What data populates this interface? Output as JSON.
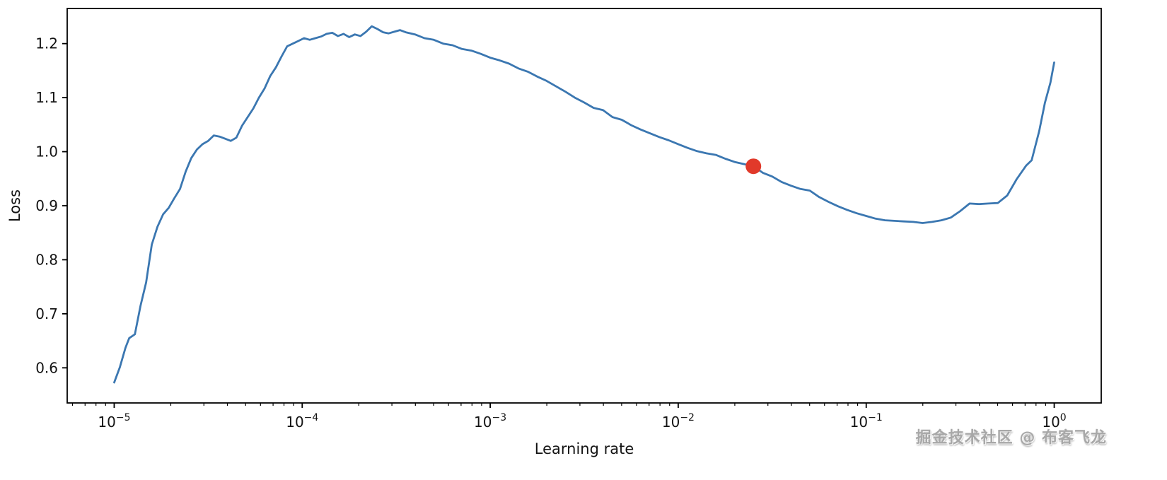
{
  "watermark": {
    "text": "掘金技术社区 @ 布客飞龙"
  },
  "chart_data": {
    "type": "line",
    "title": "",
    "xlabel": "Learning rate",
    "ylabel": "Loss",
    "x_scale": "log",
    "xlim_log": [
      -5.25,
      0.25
    ],
    "ylim": [
      0.535,
      1.265
    ],
    "x_tick_exponents": [
      -5,
      -4,
      -3,
      -2,
      -1,
      0
    ],
    "y_ticks": [
      0.6,
      0.7,
      0.8,
      0.9,
      1.0,
      1.1,
      1.2
    ],
    "grid": false,
    "legend": "none",
    "axis_color": "#000000",
    "line_color": "#3b77b1",
    "marker": {
      "label": "suggested-learning-rate",
      "x_log10": -1.6,
      "x_value_approx": 0.025,
      "y": 0.973,
      "color": "#e1392a",
      "radius": 11
    },
    "series": [
      {
        "name": "loss",
        "points_log10": [
          [
            -5.0,
            0.573
          ],
          [
            -4.97,
            0.601
          ],
          [
            -4.94,
            0.637
          ],
          [
            -4.92,
            0.655
          ],
          [
            -4.89,
            0.662
          ],
          [
            -4.86,
            0.715
          ],
          [
            -4.83,
            0.758
          ],
          [
            -4.8,
            0.828
          ],
          [
            -4.77,
            0.861
          ],
          [
            -4.74,
            0.884
          ],
          [
            -4.71,
            0.896
          ],
          [
            -4.68,
            0.914
          ],
          [
            -4.65,
            0.931
          ],
          [
            -4.62,
            0.963
          ],
          [
            -4.59,
            0.988
          ],
          [
            -4.56,
            1.004
          ],
          [
            -4.53,
            1.014
          ],
          [
            -4.5,
            1.02
          ],
          [
            -4.47,
            1.03
          ],
          [
            -4.44,
            1.028
          ],
          [
            -4.41,
            1.024
          ],
          [
            -4.38,
            1.02
          ],
          [
            -4.35,
            1.026
          ],
          [
            -4.32,
            1.048
          ],
          [
            -4.29,
            1.064
          ],
          [
            -4.26,
            1.08
          ],
          [
            -4.23,
            1.1
          ],
          [
            -4.2,
            1.117
          ],
          [
            -4.17,
            1.14
          ],
          [
            -4.14,
            1.156
          ],
          [
            -4.11,
            1.176
          ],
          [
            -4.08,
            1.195
          ],
          [
            -4.05,
            1.2
          ],
          [
            -4.02,
            1.205
          ],
          [
            -3.99,
            1.21
          ],
          [
            -3.96,
            1.207
          ],
          [
            -3.93,
            1.21
          ],
          [
            -3.9,
            1.213
          ],
          [
            -3.87,
            1.218
          ],
          [
            -3.84,
            1.22
          ],
          [
            -3.81,
            1.214
          ],
          [
            -3.78,
            1.218
          ],
          [
            -3.75,
            1.212
          ],
          [
            -3.72,
            1.217
          ],
          [
            -3.69,
            1.214
          ],
          [
            -3.66,
            1.222
          ],
          [
            -3.63,
            1.232
          ],
          [
            -3.6,
            1.227
          ],
          [
            -3.57,
            1.221
          ],
          [
            -3.54,
            1.219
          ],
          [
            -3.51,
            1.222
          ],
          [
            -3.48,
            1.225
          ],
          [
            -3.45,
            1.221
          ],
          [
            -3.4,
            1.217
          ],
          [
            -3.35,
            1.21
          ],
          [
            -3.3,
            1.207
          ],
          [
            -3.25,
            1.2
          ],
          [
            -3.2,
            1.197
          ],
          [
            -3.15,
            1.19
          ],
          [
            -3.1,
            1.187
          ],
          [
            -3.05,
            1.181
          ],
          [
            -3.0,
            1.174
          ],
          [
            -2.95,
            1.169
          ],
          [
            -2.9,
            1.163
          ],
          [
            -2.85,
            1.154
          ],
          [
            -2.8,
            1.148
          ],
          [
            -2.75,
            1.139
          ],
          [
            -2.7,
            1.131
          ],
          [
            -2.65,
            1.121
          ],
          [
            -2.6,
            1.111
          ],
          [
            -2.55,
            1.1
          ],
          [
            -2.5,
            1.091
          ],
          [
            -2.45,
            1.081
          ],
          [
            -2.4,
            1.077
          ],
          [
            -2.35,
            1.064
          ],
          [
            -2.3,
            1.059
          ],
          [
            -2.25,
            1.049
          ],
          [
            -2.2,
            1.041
          ],
          [
            -2.15,
            1.034
          ],
          [
            -2.1,
            1.027
          ],
          [
            -2.05,
            1.021
          ],
          [
            -2.0,
            1.014
          ],
          [
            -1.95,
            1.007
          ],
          [
            -1.9,
            1.001
          ],
          [
            -1.85,
            0.997
          ],
          [
            -1.8,
            0.994
          ],
          [
            -1.75,
            0.987
          ],
          [
            -1.7,
            0.981
          ],
          [
            -1.65,
            0.977
          ],
          [
            -1.6,
            0.973
          ],
          [
            -1.55,
            0.961
          ],
          [
            -1.5,
            0.954
          ],
          [
            -1.45,
            0.944
          ],
          [
            -1.4,
            0.937
          ],
          [
            -1.35,
            0.931
          ],
          [
            -1.3,
            0.928
          ],
          [
            -1.25,
            0.916
          ],
          [
            -1.2,
            0.907
          ],
          [
            -1.15,
            0.899
          ],
          [
            -1.1,
            0.892
          ],
          [
            -1.05,
            0.886
          ],
          [
            -1.0,
            0.881
          ],
          [
            -0.95,
            0.876
          ],
          [
            -0.9,
            0.873
          ],
          [
            -0.85,
            0.872
          ],
          [
            -0.8,
            0.871
          ],
          [
            -0.75,
            0.87
          ],
          [
            -0.7,
            0.868
          ],
          [
            -0.65,
            0.87
          ],
          [
            -0.6,
            0.873
          ],
          [
            -0.55,
            0.878
          ],
          [
            -0.5,
            0.89
          ],
          [
            -0.45,
            0.904
          ],
          [
            -0.4,
            0.903
          ],
          [
            -0.35,
            0.904
          ],
          [
            -0.3,
            0.905
          ],
          [
            -0.25,
            0.919
          ],
          [
            -0.2,
            0.949
          ],
          [
            -0.15,
            0.974
          ],
          [
            -0.12,
            0.984
          ],
          [
            -0.08,
            1.038
          ],
          [
            -0.05,
            1.09
          ],
          [
            -0.02,
            1.128
          ],
          [
            0.0,
            1.165
          ]
        ]
      }
    ]
  }
}
